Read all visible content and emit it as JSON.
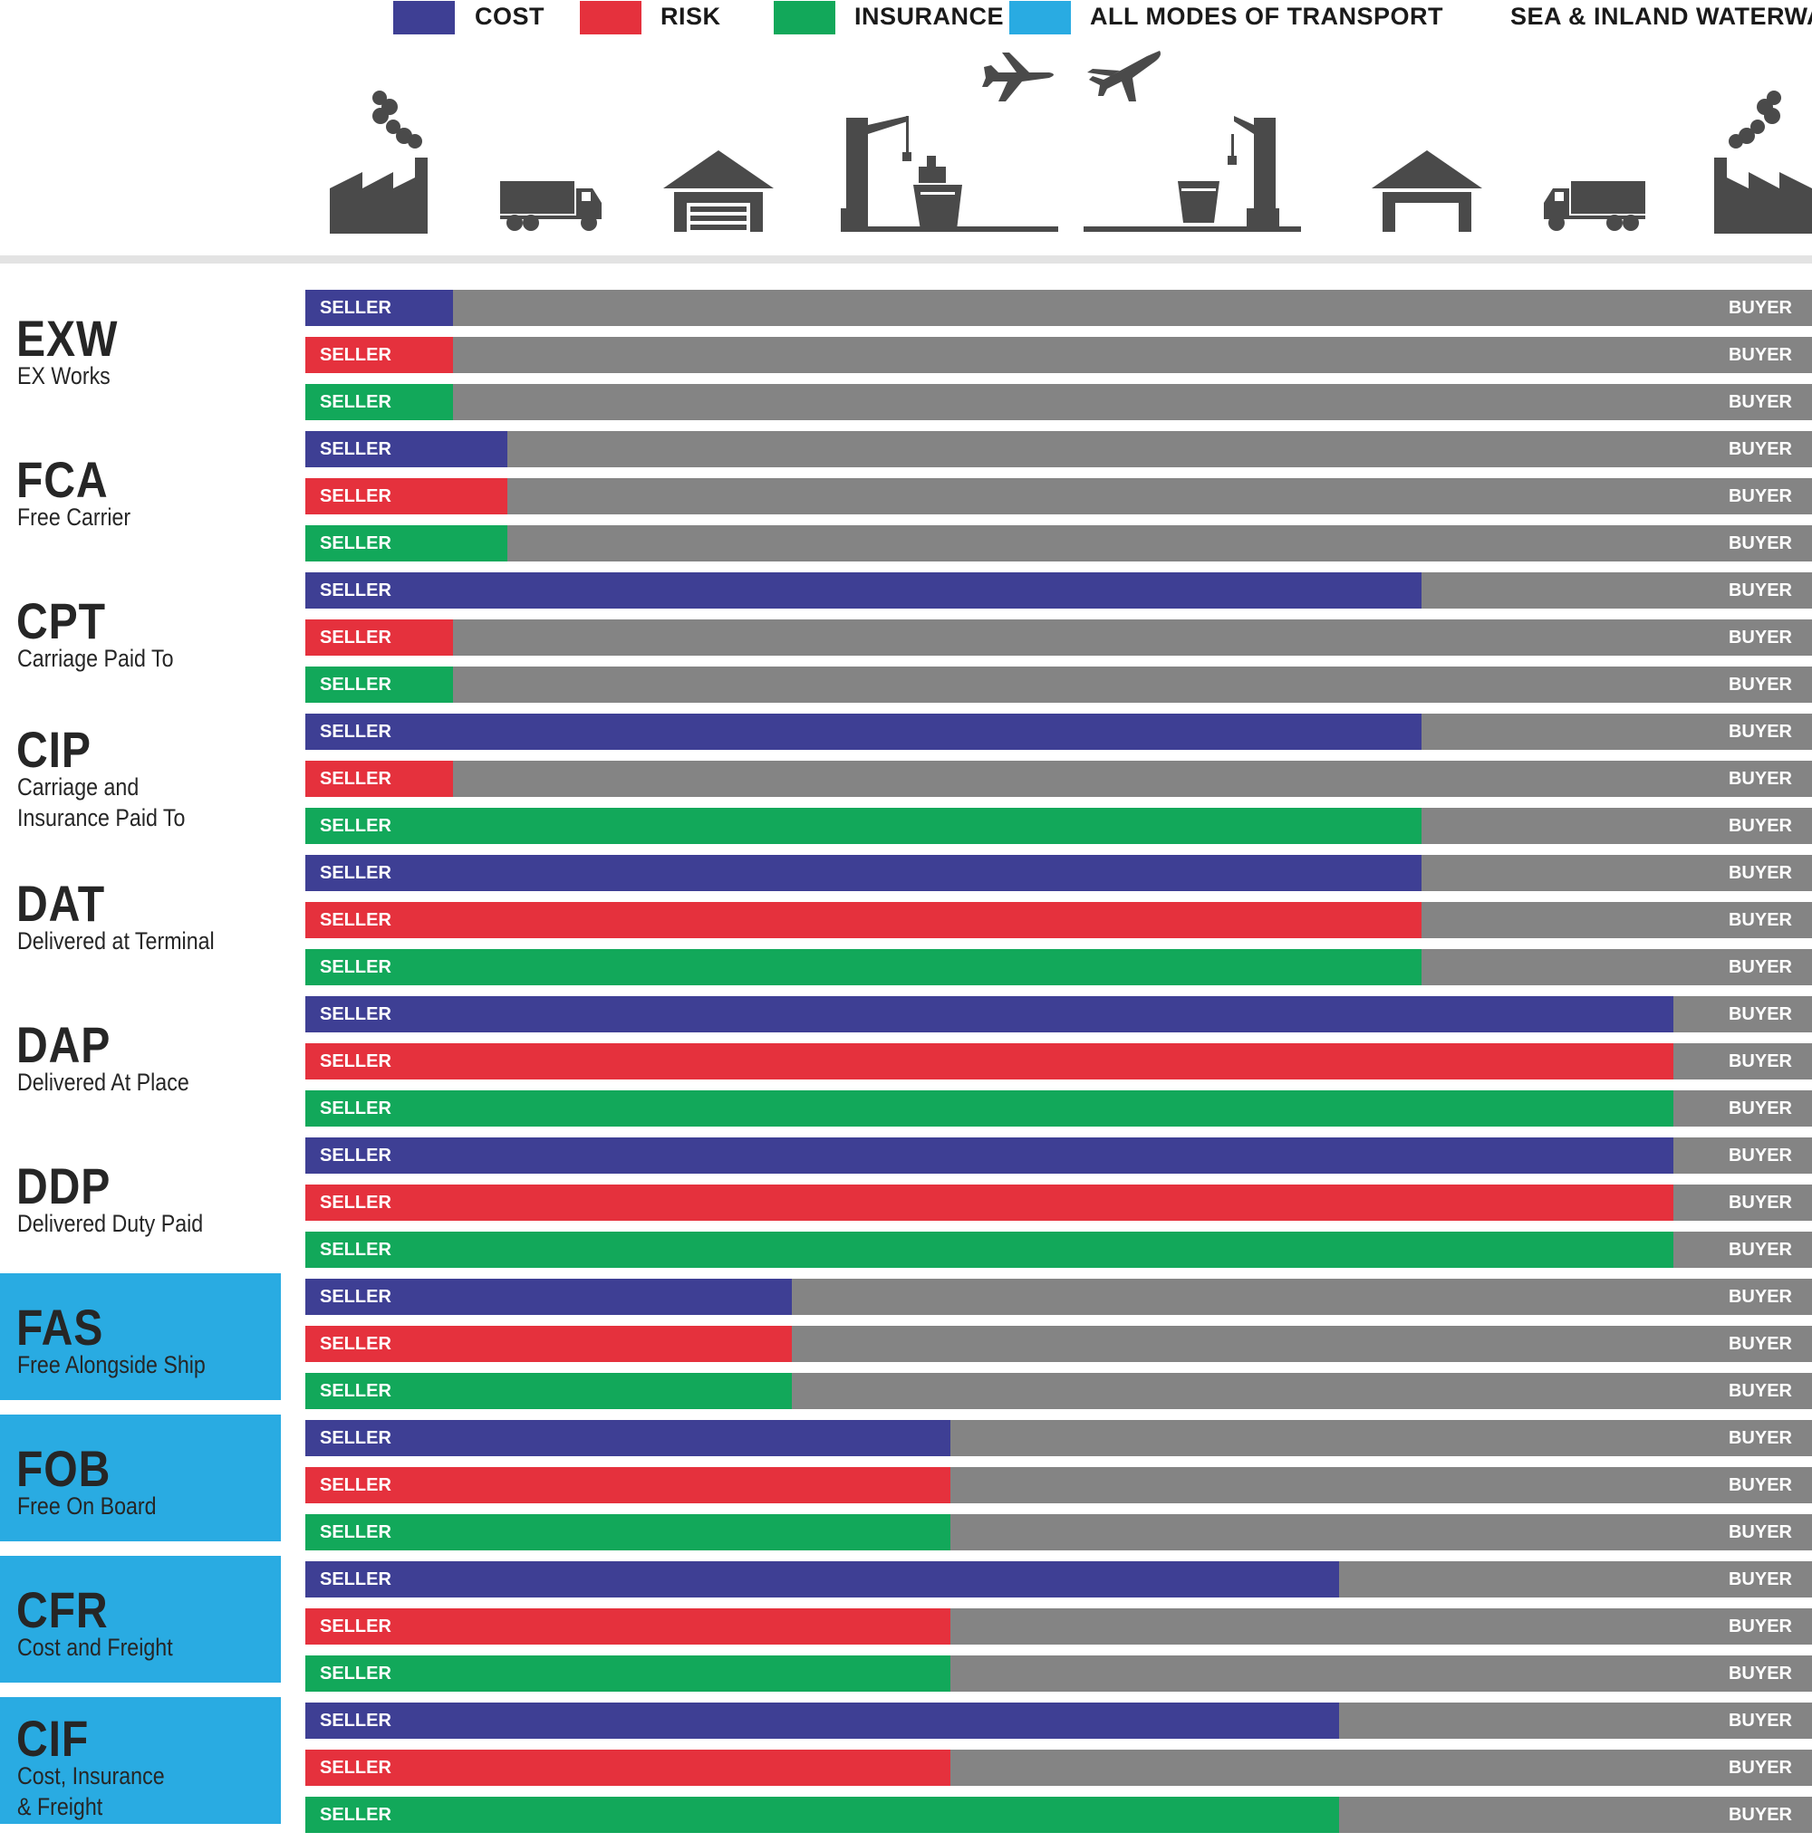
{
  "legend": {
    "items": [
      {
        "label": "COST",
        "color": "#3e3f94"
      },
      {
        "label": "RISK",
        "color": "#e5313d"
      },
      {
        "label": "INSURANCE",
        "color": "#12a85a"
      },
      {
        "label": "ALL MODES OF TRANSPORT",
        "color": "#29abe2"
      }
    ],
    "sea_label": "SEA & INLAND WATERWAYS"
  },
  "icons": [
    "factory-icon",
    "truck-icon",
    "warehouse-icon",
    "airplane-icon",
    "airplane-icon",
    "port-crane-ship-icon",
    "port-crane-ship-icon",
    "warehouse-icon",
    "truck-icon",
    "factory-icon"
  ],
  "colors": {
    "buyer": "#848484",
    "sea_highlight": "#29abe2",
    "icon": "#4a4a4a"
  },
  "chart_data": {
    "type": "bar",
    "orientation": "horizontal",
    "stacked": true,
    "left_label": "SELLER",
    "right_label": "BUYER",
    "scale_note": "seller share of the transport chain, 0 = seller's factory, 100 = buyer's factory",
    "xlim": [
      0,
      100
    ],
    "series_order": [
      "cost",
      "risk",
      "insurance"
    ],
    "terms": [
      {
        "code": "EXW",
        "name": "EX Works",
        "group": "all",
        "cost": 9.8,
        "risk": 9.8,
        "insurance": 9.8
      },
      {
        "code": "FCA",
        "name": "Free Carrier",
        "group": "all",
        "cost": 13.4,
        "risk": 13.4,
        "insurance": 13.4
      },
      {
        "code": "CPT",
        "name": "Carriage Paid To",
        "group": "all",
        "cost": 74.1,
        "risk": 9.8,
        "insurance": 9.8
      },
      {
        "code": "CIP",
        "name": "Carriage and\nInsurance Paid To",
        "group": "all",
        "cost": 74.1,
        "risk": 9.8,
        "insurance": 74.1
      },
      {
        "code": "DAT",
        "name": "Delivered at Terminal",
        "group": "all",
        "cost": 74.1,
        "risk": 74.1,
        "insurance": 74.1
      },
      {
        "code": "DAP",
        "name": "Delivered At Place",
        "group": "all",
        "cost": 90.8,
        "risk": 90.8,
        "insurance": 90.8
      },
      {
        "code": "DDP",
        "name": "Delivered Duty Paid",
        "group": "all",
        "cost": 90.8,
        "risk": 90.8,
        "insurance": 90.8
      },
      {
        "code": "FAS",
        "name": "Free Alongside Ship",
        "group": "sea",
        "cost": 32.3,
        "risk": 32.3,
        "insurance": 32.3
      },
      {
        "code": "FOB",
        "name": "Free On Board",
        "group": "sea",
        "cost": 42.8,
        "risk": 42.8,
        "insurance": 42.8
      },
      {
        "code": "CFR",
        "name": "Cost and Freight",
        "group": "sea",
        "cost": 68.6,
        "risk": 42.8,
        "insurance": 42.8
      },
      {
        "code": "CIF",
        "name": "Cost, Insurance\n& Freight",
        "group": "sea",
        "cost": 68.6,
        "risk": 42.8,
        "insurance": 68.6
      }
    ]
  }
}
